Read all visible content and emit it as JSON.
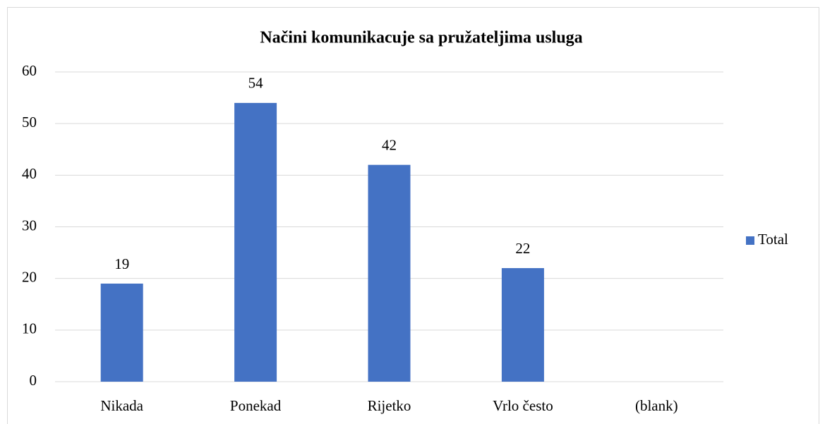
{
  "chart_data": {
    "type": "bar",
    "title": "Načini komunikacuje sa pružateljima usluga",
    "categories": [
      "Nikada",
      "Ponekad",
      "Rijetko",
      "Vrlo često",
      "(blank)"
    ],
    "series": [
      {
        "name": "Total",
        "color": "#4472c4",
        "values": [
          19,
          54,
          42,
          22,
          null
        ]
      }
    ],
    "ylim": [
      0,
      60
    ],
    "yticks": [
      0,
      10,
      20,
      30,
      40,
      50,
      60
    ],
    "grid": true,
    "legend": "right"
  }
}
